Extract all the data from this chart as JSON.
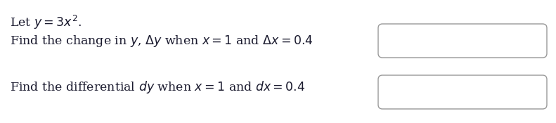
{
  "bg_color": "#ffffff",
  "text_color": "#1a1a2e",
  "line1": "Let $y = 3x^2$.",
  "line2": "Find the change in $y$, $\\Delta y$ when $x = 1$ and $\\Delta x = 0.4$",
  "line3": "Find the differential $dy$ when $x = 1$ and $dx = 0.4$",
  "box_edge_color": "#999999",
  "font_size": 12.5,
  "fig_width": 7.91,
  "fig_height": 1.75,
  "dpi": 100
}
